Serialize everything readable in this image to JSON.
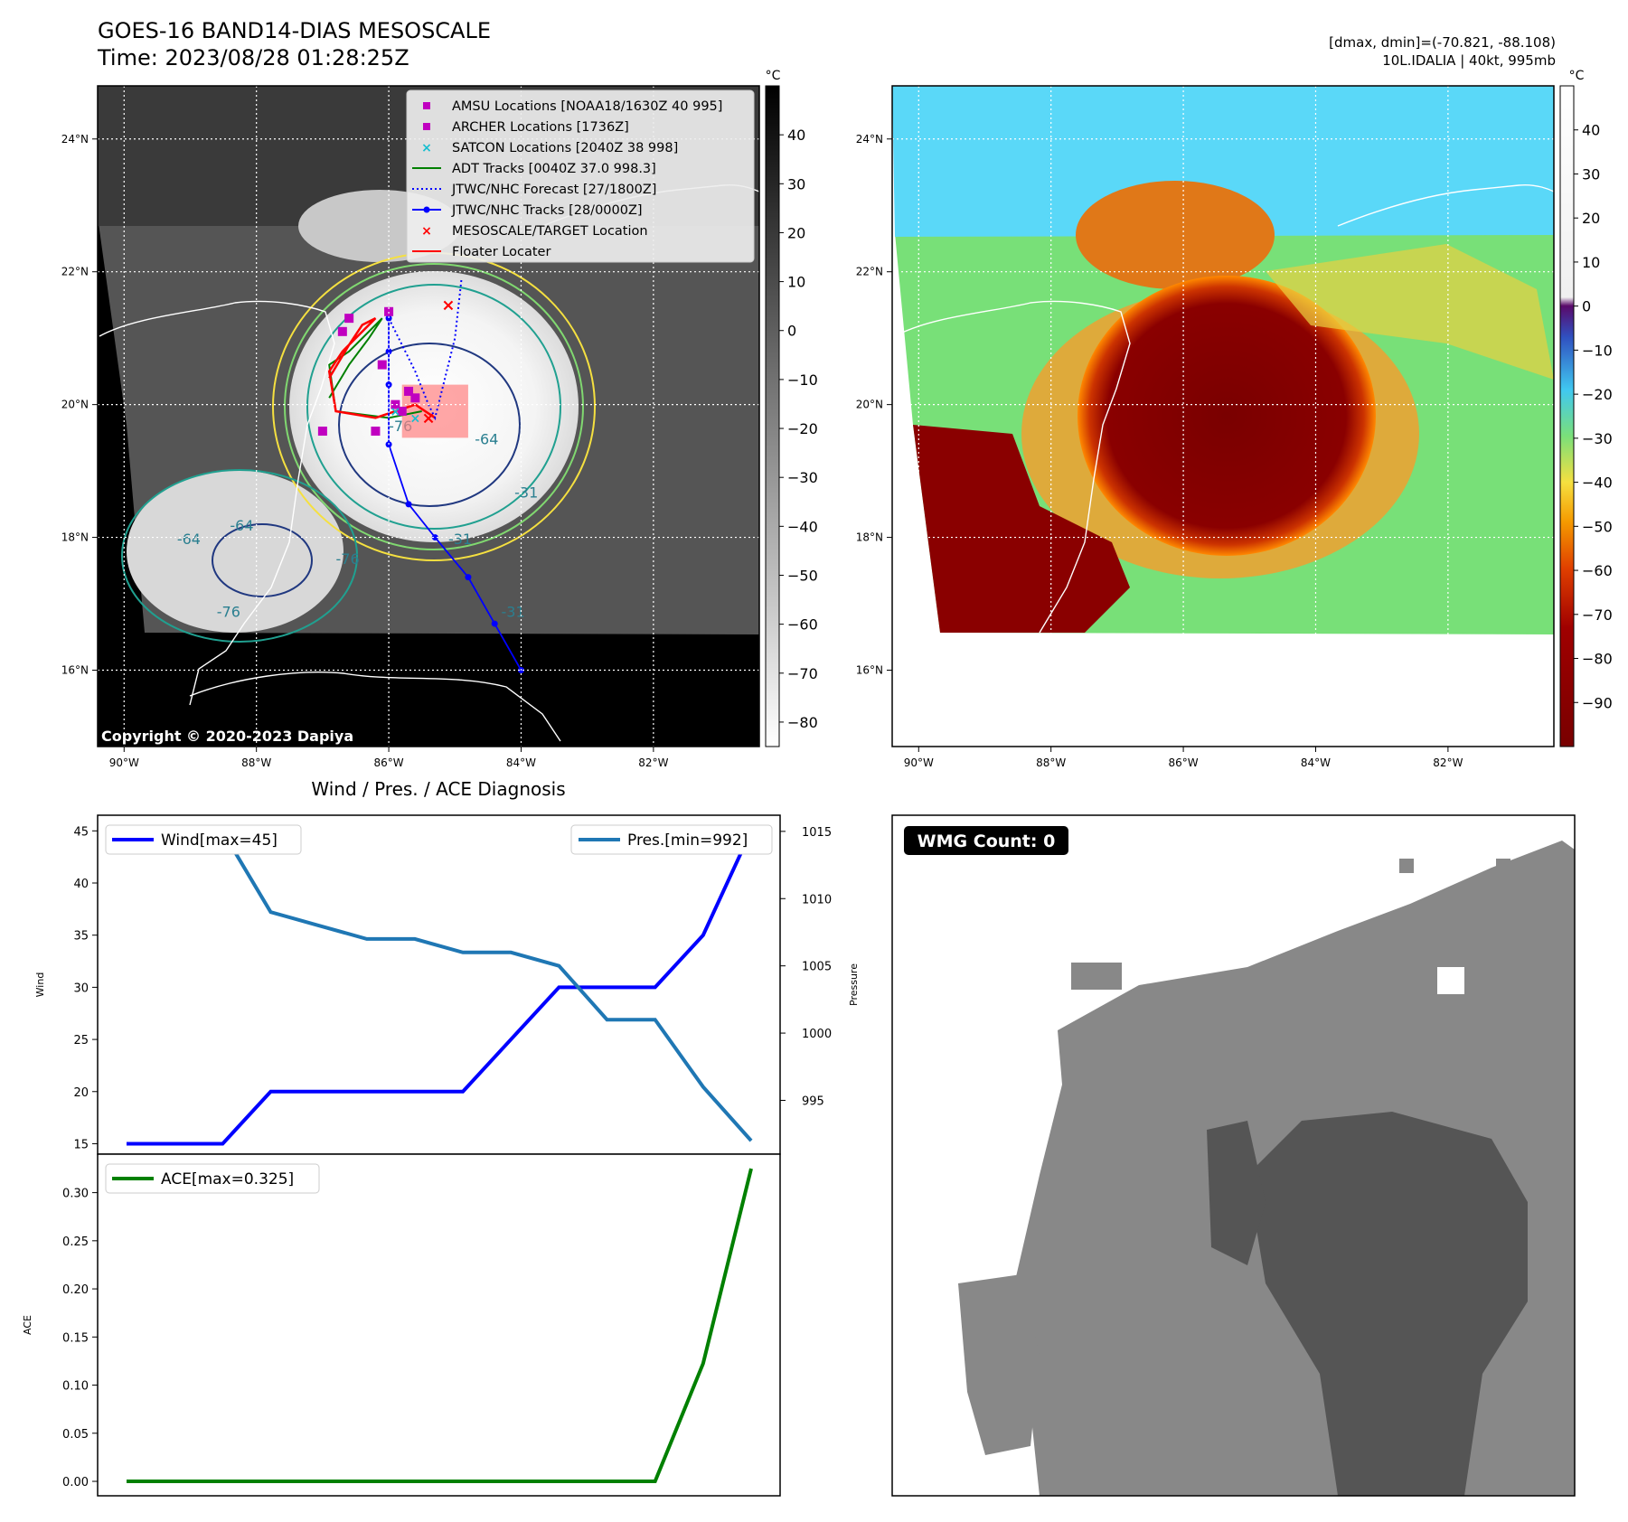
{
  "header": {
    "title": "GOES-16 BAND14-DIAS MESOSCALE",
    "time": "Time: 2023/08/28 01:28:25Z",
    "dmax_dmin": "[dmax, dmin]=(-70.821, -88.108)",
    "storm": "10L.IDALIA | 40kt, 995mb",
    "copyright": "Copyright © 2020-2023 Dapiya"
  },
  "maps": {
    "lon_ticks": [
      "90°W",
      "88°W",
      "86°W",
      "84°W",
      "82°W"
    ],
    "lat_ticks": [
      "24°N",
      "22°N",
      "20°N",
      "18°N",
      "16°N"
    ],
    "lon_range": [
      -90.4,
      -80.4
    ],
    "lat_range": [
      14.85,
      24.8
    ],
    "contour_labels": [
      "-76",
      "-64",
      "-31",
      "-64",
      "-76",
      "-31",
      "-31",
      "-64",
      "-76"
    ],
    "legend": [
      {
        "label": "AMSU Locations [NOAA18/1630Z 40 995]",
        "marker": "square",
        "color": "#c000c0"
      },
      {
        "label": "ARCHER Locations [1736Z]",
        "marker": "square",
        "color": "#c000c0"
      },
      {
        "label": "SATCON Locations [2040Z 38 998]",
        "marker": "x",
        "color": "#17becf"
      },
      {
        "label": "ADT Tracks [0040Z 37.0 998.3]",
        "marker": "line",
        "color": "#008000"
      },
      {
        "label": "JTWC/NHC Forecast [27/1800Z]",
        "marker": "dotted",
        "color": "#0000ff"
      },
      {
        "label": "JTWC/NHC Tracks [28/0000Z]",
        "marker": "line-dot",
        "color": "#0000ff"
      },
      {
        "label": "MESOSCALE/TARGET Location",
        "marker": "x",
        "color": "#ff0000"
      },
      {
        "label": "Floater Locater",
        "marker": "line",
        "color": "#ff0000"
      }
    ],
    "colorbar_unit": "°C",
    "gray_colorbar_ticks": [
      "40",
      "30",
      "20",
      "10",
      "0",
      "−10",
      "−20",
      "−30",
      "−40",
      "−50",
      "−60",
      "−70",
      "−80"
    ],
    "gray_colorbar_values": [
      40,
      30,
      20,
      10,
      0,
      -10,
      -20,
      -30,
      -40,
      -50,
      -60,
      -70,
      -80
    ],
    "gray_colorbar_range": [
      -85,
      50
    ],
    "color_colorbar_ticks": [
      "40",
      "30",
      "20",
      "10",
      "0",
      "−10",
      "−20",
      "−30",
      "−40",
      "−50",
      "−60",
      "−70",
      "−80",
      "−90"
    ],
    "color_colorbar_values": [
      40,
      30,
      20,
      10,
      0,
      -10,
      -20,
      -30,
      -40,
      -50,
      -60,
      -70,
      -80,
      -90
    ],
    "color_colorbar_range": [
      -100,
      50
    ],
    "tracks": {
      "jtwc_track": [
        [
          -84.0,
          16.0
        ],
        [
          -84.4,
          16.7
        ],
        [
          -84.8,
          17.4
        ],
        [
          -85.3,
          18.0
        ],
        [
          -85.7,
          18.5
        ],
        [
          -86.0,
          19.4
        ],
        [
          -86.0,
          20.3
        ],
        [
          -86.0,
          20.8
        ],
        [
          -86.0,
          21.3
        ]
      ],
      "jtwc_forecast": [
        [
          -86.0,
          21.3
        ],
        [
          -85.6,
          20.5
        ],
        [
          -85.4,
          20.0
        ],
        [
          -85.3,
          19.8
        ],
        [
          -85.0,
          21.0
        ],
        [
          -84.9,
          21.9
        ]
      ],
      "adt_track": [
        [
          -86.9,
          20.1
        ],
        [
          -86.6,
          20.6
        ],
        [
          -86.3,
          21.0
        ],
        [
          -86.1,
          21.3
        ],
        [
          -86.6,
          20.8
        ],
        [
          -86.9,
          20.6
        ],
        [
          -86.8,
          19.9
        ],
        [
          -86.0,
          19.8
        ],
        [
          -85.5,
          19.9
        ]
      ],
      "floater": [
        [
          -86.9,
          20.4
        ],
        [
          -86.6,
          20.9
        ],
        [
          -86.4,
          21.2
        ],
        [
          -86.2,
          21.3
        ],
        [
          -86.7,
          20.8
        ],
        [
          -86.9,
          20.5
        ],
        [
          -86.8,
          19.9
        ],
        [
          -86.2,
          19.8
        ],
        [
          -85.6,
          20.0
        ],
        [
          -85.3,
          19.8
        ]
      ],
      "amsu_archer": [
        [
          -86.0,
          21.4
        ],
        [
          -86.6,
          21.3
        ],
        [
          -86.1,
          20.6
        ],
        [
          -85.7,
          20.2
        ],
        [
          -85.9,
          20.0
        ],
        [
          -86.2,
          19.6
        ],
        [
          -87.0,
          19.6
        ],
        [
          -85.6,
          20.1
        ],
        [
          -85.8,
          19.9
        ],
        [
          -86.7,
          21.1
        ]
      ],
      "satcon": [
        [
          -85.9,
          19.9
        ],
        [
          -85.6,
          19.8
        ]
      ],
      "target": [
        [
          -85.1,
          21.5
        ],
        [
          -85.4,
          19.8
        ]
      ]
    },
    "floater_box": {
      "lon": [
        -85.8,
        -84.8
      ],
      "lat": [
        19.5,
        20.3
      ]
    }
  },
  "diagnosis": {
    "title": "Wind / Pres. / ACE Diagnosis",
    "wmg_label": "WMG Count: 0"
  },
  "chart_data": [
    {
      "type": "line",
      "title": "Wind / Pres. / ACE Diagnosis",
      "ylabel": "Wind",
      "y2label": "Pressure",
      "ylim": [
        14,
        46.5
      ],
      "y2lim": [
        991,
        1016.2
      ],
      "yticks": [
        15,
        20,
        25,
        30,
        35,
        40,
        45
      ],
      "y2ticks": [
        995,
        1000,
        1005,
        1010,
        1015
      ],
      "x": [
        0,
        1,
        2,
        3,
        4,
        5,
        6,
        7,
        8,
        9,
        10,
        11,
        12,
        13
      ],
      "series": [
        {
          "name": "Wind[max=45]",
          "color": "#0000ff",
          "axis": "left",
          "values": [
            15,
            15,
            15,
            20,
            20,
            20,
            20,
            20,
            25,
            30,
            30,
            30,
            35,
            45
          ]
        },
        {
          "name": "Pres.[min=992]",
          "color": "#1f77b4",
          "axis": "right",
          "values": [
            1015,
            1015,
            1015,
            1009,
            1008,
            1007,
            1007,
            1006,
            1006,
            1005,
            1001,
            1001,
            996,
            992
          ]
        }
      ],
      "legend": [
        "top-left",
        "top-right"
      ]
    },
    {
      "type": "line",
      "ylabel": "ACE",
      "ylim": [
        -0.015,
        0.34
      ],
      "yticks": [
        0.0,
        0.05,
        0.1,
        0.15,
        0.2,
        0.25,
        0.3
      ],
      "ytick_labels": [
        "0.00",
        "0.05",
        "0.10",
        "0.15",
        "0.20",
        "0.25",
        "0.30"
      ],
      "x": [
        0,
        1,
        2,
        3,
        4,
        5,
        6,
        7,
        8,
        9,
        10,
        11,
        12,
        13
      ],
      "series": [
        {
          "name": "ACE[max=0.325]",
          "color": "#008000",
          "values": [
            0,
            0,
            0,
            0,
            0,
            0,
            0,
            0,
            0,
            0,
            0,
            0,
            0.1225,
            0.325
          ]
        }
      ],
      "legend": "top-left"
    }
  ]
}
